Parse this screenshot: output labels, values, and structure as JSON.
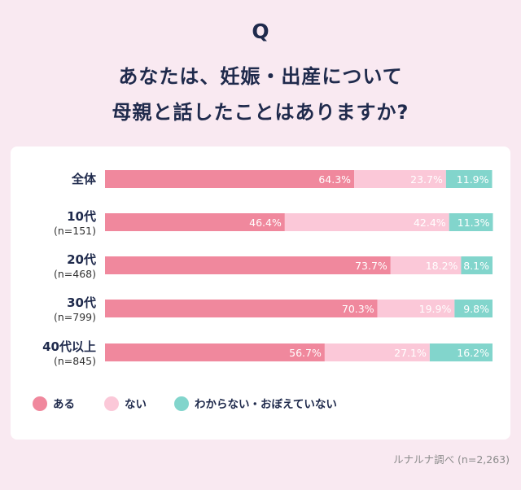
{
  "header": {
    "q": "Q",
    "title_line1": "あなたは、妊娠・出産について",
    "title_line2": "母親と話したことはありますか?"
  },
  "credit": "ルナルナ調べ (n=2,263)",
  "chart_data": {
    "type": "bar",
    "orientation": "horizontal",
    "stacked": true,
    "percent": true,
    "categories": [
      {
        "label": "全体",
        "sub": ""
      },
      {
        "label": "10代",
        "sub": "(n=151)"
      },
      {
        "label": "20代",
        "sub": "(n=468)"
      },
      {
        "label": "30代",
        "sub": "(n=799)"
      },
      {
        "label": "40代以上",
        "sub": "(n=845)"
      }
    ],
    "series": [
      {
        "name": "ある",
        "color": "#f0889d",
        "values": [
          64.3,
          46.4,
          73.7,
          70.3,
          56.7
        ]
      },
      {
        "name": "ない",
        "color": "#fbc8d8",
        "values": [
          23.7,
          42.4,
          18.2,
          19.9,
          27.1
        ]
      },
      {
        "name": "わからない・おぼえていない",
        "color": "#82d5cc",
        "values": [
          11.9,
          11.3,
          8.1,
          9.8,
          16.2
        ]
      }
    ],
    "value_suffix": "%",
    "legend_position": "bottom-left",
    "xlim": [
      0,
      100
    ]
  }
}
